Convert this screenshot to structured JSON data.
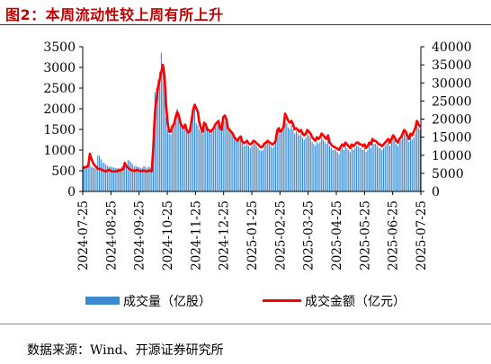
{
  "header": {
    "title": "图2：本周流动性较上周有所上升"
  },
  "footer": {
    "source": "数据来源：Wind、开源证券研究所"
  },
  "colors": {
    "bar": "#3c8bd0",
    "line": "#ff0000",
    "title": "#c00000"
  },
  "chart_data": {
    "type": "bar+line",
    "title": "",
    "x_tick_labels": [
      "2024-07-25",
      "2024-08-25",
      "2024-09-25",
      "2024-10-25",
      "2024-11-25",
      "2024-12-25",
      "2025-01-25",
      "2025-02-25",
      "2025-03-25",
      "2025-04-25",
      "2025-05-25",
      "2025-06-25",
      "2025-07-25"
    ],
    "y_left": {
      "ticks": [
        "0",
        "500",
        "1000",
        "1500",
        "2000",
        "2500",
        "3000",
        "3500"
      ],
      "ylim": [
        0,
        3500
      ]
    },
    "y_right": {
      "ticks": [
        "0",
        "5000",
        "10000",
        "15000",
        "20000",
        "25000",
        "30000",
        "35000",
        "40000"
      ],
      "ylim": [
        0,
        40000
      ]
    },
    "legend": {
      "placement": "bottom",
      "entries": [
        "成交量（亿股）",
        "成交金额（亿元）"
      ]
    },
    "grid": false,
    "series": [
      {
        "name": "成交量（亿股）",
        "axis": "left",
        "type": "bar",
        "x_start": "2024-07-25",
        "x_end": "2025-07-25",
        "values": [
          600,
          590,
          560,
          600,
          650,
          590,
          580,
          560,
          600,
          880,
          860,
          780,
          700,
          690,
          650,
          620,
          600,
          600,
          590,
          580,
          570,
          560,
          560,
          560,
          600,
          580,
          620,
          600,
          760,
          740,
          700,
          650,
          600,
          620,
          600,
          590,
          560,
          580,
          620,
          600,
          560,
          600,
          580,
          560,
          1200,
          2400,
          2500,
          2700,
          2900,
          3350,
          3050,
          2600,
          1800,
          1500,
          1400,
          1380,
          1500,
          1600,
          1800,
          2000,
          1750,
          1650,
          1600,
          1500,
          1550,
          1450,
          1400,
          1450,
          1800,
          1950,
          2000,
          1650,
          1600,
          1500,
          1450,
          1400,
          1650,
          1550,
          1500,
          1450,
          1400,
          1450,
          1500,
          1550,
          1600,
          1650,
          1500,
          1450,
          1800,
          1700,
          1650,
          1500,
          1480,
          1450,
          1400,
          1300,
          1250,
          1200,
          1300,
          1350,
          1150,
          1100,
          1120,
          1150,
          1100,
          1050,
          1100,
          1200,
          1150,
          1100,
          1050,
          1000,
          980,
          1000,
          1100,
          1150,
          1200,
          1150,
          1100,
          1050,
          1100,
          1200,
          1450,
          1500,
          1400,
          1450,
          1500,
          1800,
          1650,
          1550,
          1500,
          1600,
          1500,
          1400,
          1450,
          1400,
          1350,
          1400,
          1300,
          1250,
          1300,
          1400,
          1350,
          1300,
          1200,
          1150,
          1100,
          1200,
          1150,
          1200,
          1300,
          1250,
          1200,
          1150,
          1250,
          1100,
          1050,
          1000,
          1000,
          1000,
          950,
          900,
          1000,
          1050,
          1000,
          1100,
          1050,
          1000,
          950,
          1050,
          1000,
          1050,
          1100,
          1100,
          1050,
          1050,
          1000,
          1050,
          950,
          1000,
          1100,
          1050,
          1200,
          1150,
          1150,
          1100,
          1050,
          1050,
          1000,
          1050,
          1100,
          1150,
          1200,
          1100,
          1200,
          1300,
          1250,
          1150,
          1100,
          1200,
          1250,
          1350,
          1450,
          1400,
          1300,
          1200,
          1350,
          1250,
          1300,
          1400,
          1650,
          1550,
          1500
        ]
      },
      {
        "name": "成交金额（亿元）",
        "axis": "right",
        "type": "line",
        "x_start": "2024-07-25",
        "x_end": "2025-07-25",
        "values": [
          6500,
          6800,
          6700,
          7200,
          10400,
          9000,
          7900,
          7200,
          6800,
          6300,
          6200,
          6200,
          5800,
          5700,
          5500,
          5800,
          6000,
          5700,
          5600,
          5500,
          5600,
          5500,
          5900,
          5700,
          6000,
          6200,
          7900,
          7000,
          6600,
          6200,
          5900,
          5800,
          5700,
          5800,
          6000,
          5700,
          5600,
          5600,
          5800,
          5600,
          5500,
          5800,
          5700,
          5600,
          12600,
          22000,
          25600,
          29000,
          31000,
          33000,
          35000,
          32000,
          24000,
          19000,
          16500,
          16500,
          18000,
          18600,
          20500,
          22000,
          21000,
          19000,
          18000,
          17500,
          18500,
          17000,
          16300,
          16700,
          19500,
          22500,
          24000,
          23000,
          22000,
          19000,
          17500,
          16500,
          19000,
          18500,
          17000,
          17000,
          16500,
          17000,
          17500,
          18500,
          19000,
          19500,
          17500,
          17000,
          20500,
          21000,
          20000,
          17500,
          17000,
          16500,
          16000,
          15000,
          14500,
          14000,
          14800,
          15200,
          13800,
          13300,
          13600,
          14000,
          13300,
          13000,
          13300,
          14000,
          13800,
          13300,
          13000,
          12500,
          12200,
          12500,
          13300,
          13500,
          14000,
          13600,
          13300,
          13000,
          13300,
          14000,
          16800,
          17500,
          16500,
          17000,
          17800,
          21500,
          20500,
          19500,
          19000,
          19500,
          18500,
          17200,
          17500,
          17000,
          16500,
          17000,
          16000,
          15500,
          16000,
          17000,
          16500,
          16000,
          15000,
          14500,
          14000,
          15000,
          14500,
          15000,
          16000,
          15500,
          15000,
          14500,
          15500,
          13500,
          13000,
          12500,
          12300,
          12000,
          11800,
          11500,
          12300,
          13000,
          12500,
          13500,
          13000,
          12500,
          12000,
          13000,
          12500,
          13000,
          13500,
          13500,
          13000,
          13000,
          12500,
          13000,
          12000,
          12500,
          13500,
          13000,
          14500,
          14000,
          14000,
          13500,
          13000,
          13000,
          12500,
          13000,
          13500,
          14000,
          14500,
          13500,
          14500,
          15500,
          15000,
          14000,
          13500,
          14500,
          15000,
          16000,
          17000,
          16500,
          15500,
          14500,
          16000,
          15500,
          16500,
          17500,
          19500,
          18500,
          18000
        ]
      }
    ]
  }
}
